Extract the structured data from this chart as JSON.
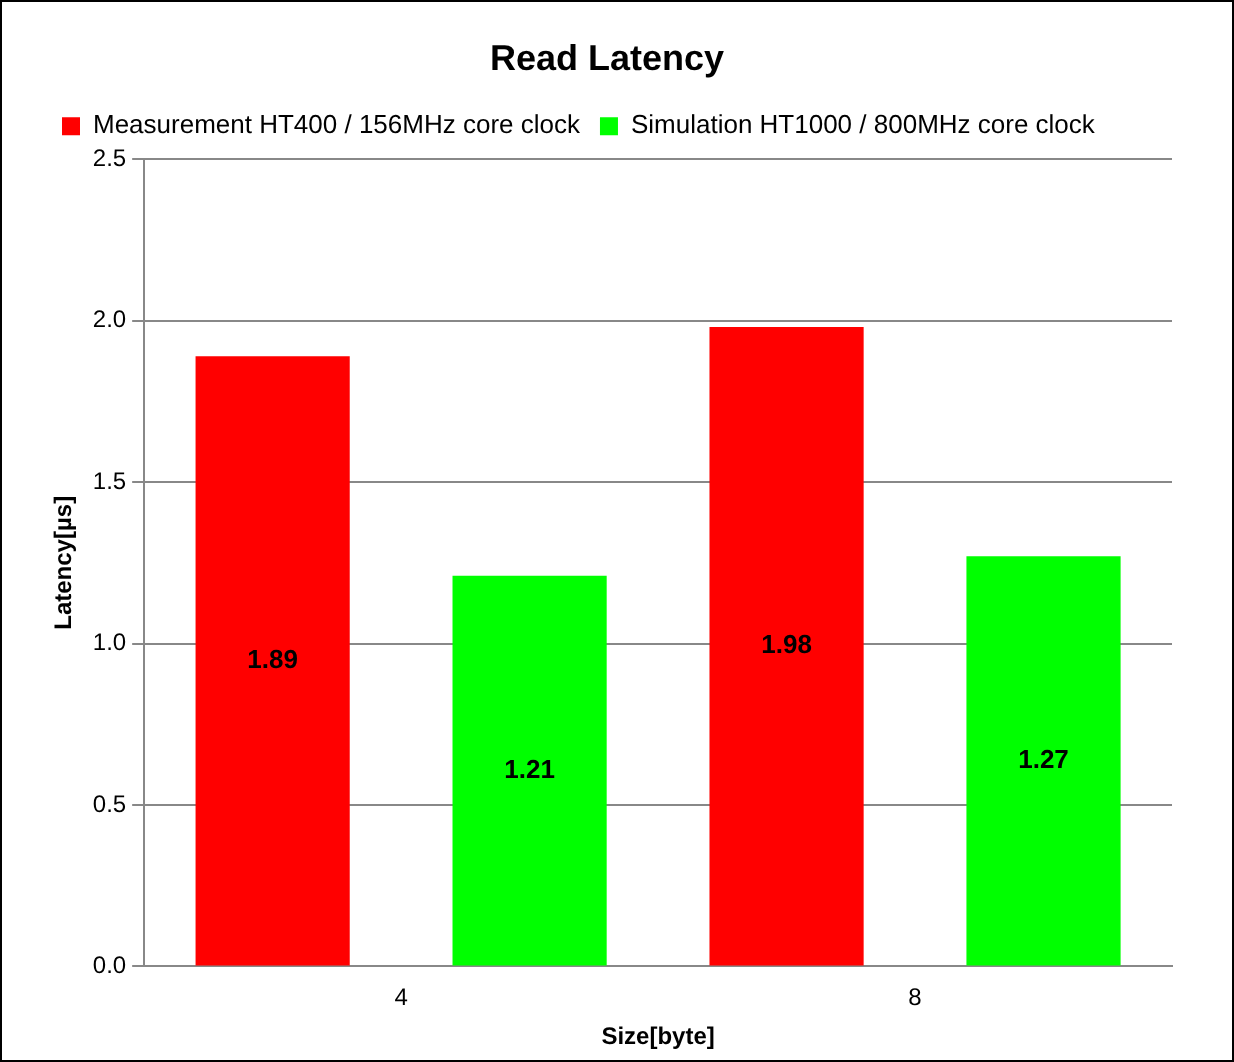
{
  "chart_data": {
    "type": "bar",
    "title": "Read Latency",
    "xlabel": "Size[byte]",
    "ylabel": "Latency[µs]",
    "categories": [
      "4",
      "8"
    ],
    "series": [
      {
        "name": "Measurement HT400 / 156MHz core clock",
        "color": "#ff0000",
        "values": [
          1.89,
          1.98
        ]
      },
      {
        "name": "Simulation HT1000 / 800MHz core clock",
        "color": "#00ff00",
        "values": [
          1.21,
          1.27
        ]
      }
    ],
    "ylim": [
      0,
      2.5
    ],
    "yticks": [
      {
        "value": 0,
        "label": "0.0"
      },
      {
        "value": 0.5,
        "label": "0.5"
      },
      {
        "value": 1,
        "label": "1.0"
      },
      {
        "value": 1.5,
        "label": "1.5"
      },
      {
        "value": 2,
        "label": "2.0"
      },
      {
        "value": 2.5,
        "label": "2.5"
      }
    ],
    "grid": "y",
    "legend": "top",
    "data_labels": true
  }
}
